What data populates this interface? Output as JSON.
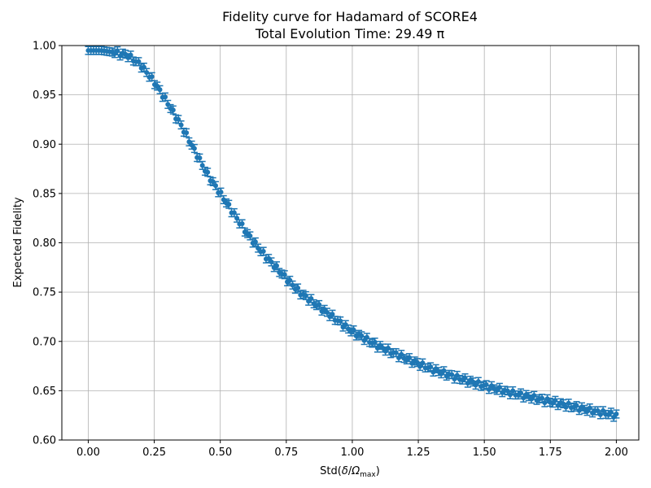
{
  "chart_data": {
    "type": "scatter",
    "title": "Fidelity curve for Hadamard of SCORE4",
    "subtitle": "Total Evolution Time: 29.49 π",
    "xlabel_main": "Std(",
    "xlabel_delta": "δ",
    "xlabel_slash": "/",
    "xlabel_omega": "Ω",
    "xlabel_sub": "max",
    "xlabel_close": ")",
    "ylabel": "Expected Fidelity",
    "xlim": [
      -0.1,
      2.085
    ],
    "ylim": [
      0.6,
      1.0
    ],
    "x_ticks": [
      0.0,
      0.25,
      0.5,
      0.75,
      1.0,
      1.25,
      1.5,
      1.75,
      2.0
    ],
    "x_tick_labels": [
      "0.00",
      "0.25",
      "0.50",
      "0.75",
      "1.00",
      "1.25",
      "1.50",
      "1.75",
      "2.00"
    ],
    "y_ticks": [
      0.6,
      0.65,
      0.7,
      0.75,
      0.8,
      0.85,
      0.9,
      0.95,
      1.0
    ],
    "y_tick_labels": [
      "0.60",
      "0.65",
      "0.70",
      "0.75",
      "0.80",
      "0.85",
      "0.90",
      "0.95",
      "1.00"
    ],
    "grid": true,
    "marker": "errorbar",
    "color": "#1f77b4",
    "curve_x": [
      0.0,
      0.05,
      0.1,
      0.15,
      0.2,
      0.25,
      0.3,
      0.35,
      0.4,
      0.45,
      0.5,
      0.55,
      0.6,
      0.65,
      0.7,
      0.75,
      0.8,
      0.9,
      1.0,
      1.1,
      1.2,
      1.3,
      1.4,
      1.5,
      1.6,
      1.7,
      1.8,
      1.9,
      2.0
    ],
    "curve_y": [
      0.995,
      0.995,
      0.993,
      0.99,
      0.98,
      0.963,
      0.942,
      0.92,
      0.895,
      0.87,
      0.85,
      0.83,
      0.81,
      0.793,
      0.778,
      0.764,
      0.75,
      0.73,
      0.71,
      0.695,
      0.683,
      0.672,
      0.663,
      0.655,
      0.648,
      0.642,
      0.636,
      0.63,
      0.625
    ],
    "n_points": 200,
    "x_range": [
      0.0,
      2.0
    ],
    "error_half_width": 0.004
  }
}
